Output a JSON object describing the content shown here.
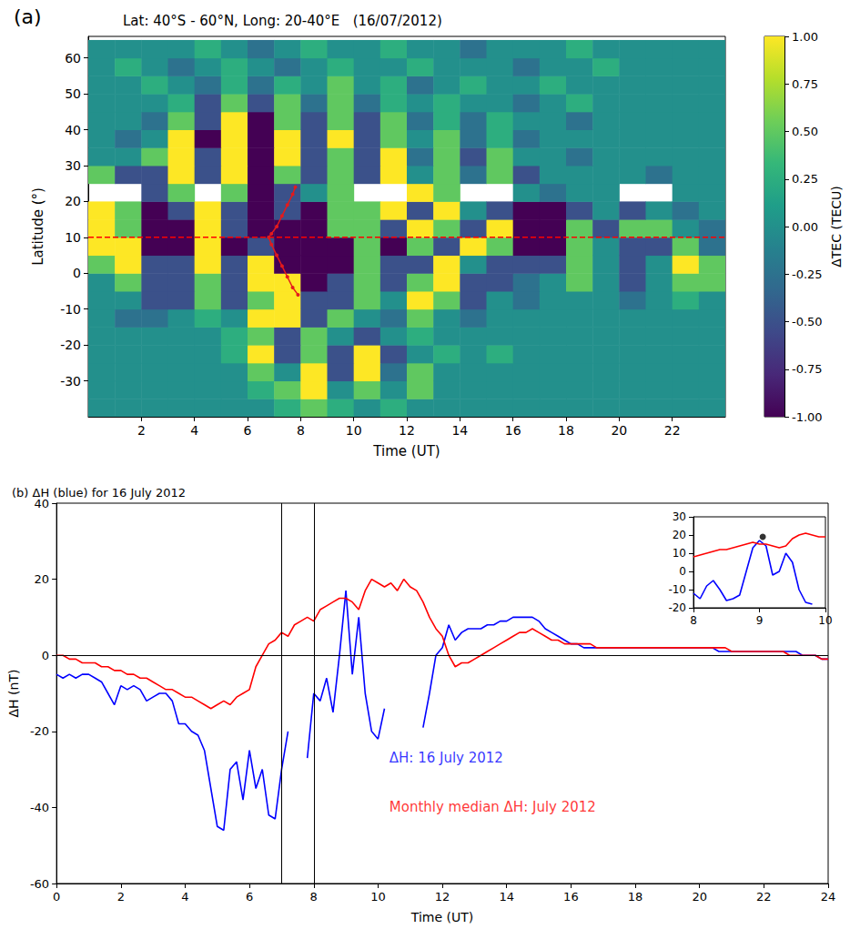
{
  "chart_data": [
    {
      "type": "heatmap",
      "panel": "(a)",
      "title": "Lat: 40°S - 60°N, Long: 20-40°E   (16/07/2012)",
      "x_label": "Time (UT)",
      "y_label": "Latitude (°)",
      "xlim": [
        0,
        24
      ],
      "xticks": [
        2,
        4,
        6,
        8,
        10,
        12,
        14,
        16,
        18,
        20,
        22
      ],
      "ylim": [
        -40,
        66
      ],
      "yticks": [
        -30,
        -20,
        -10,
        0,
        10,
        20,
        30,
        40,
        50,
        60
      ],
      "x": [
        0.5,
        1.5,
        2.5,
        3.5,
        4.5,
        5.5,
        6.5,
        7.5,
        8.5,
        9.5,
        10.5,
        11.5,
        12.5,
        13.5,
        14.5,
        15.5,
        16.5,
        17.5,
        18.5,
        19.5,
        20.5,
        21.5,
        22.5,
        23.5
      ],
      "y": [
        -37.5,
        -32.5,
        -27.5,
        -22.5,
        -17.5,
        -12.5,
        -7.5,
        -2.5,
        2.5,
        7.5,
        12.5,
        17.5,
        22.5,
        27.5,
        32.5,
        37.5,
        42.5,
        47.5,
        52.5,
        57.5,
        62.5
      ],
      "cells": [
        [
          0,
          0,
          0,
          0,
          0,
          0,
          0,
          0.25,
          0.5,
          0.25,
          0,
          0.25,
          0,
          0,
          0,
          0,
          0,
          0,
          0,
          0,
          0,
          0,
          0,
          0
        ],
        [
          0,
          0,
          0,
          0,
          0,
          0,
          0.25,
          0.5,
          1,
          0,
          0.5,
          0,
          0.5,
          0,
          0,
          0,
          0,
          0,
          0,
          0,
          0,
          0,
          0,
          0
        ],
        [
          0,
          0,
          0,
          0,
          0,
          0,
          0.5,
          0,
          1,
          -0.5,
          1,
          -0.25,
          0.5,
          0,
          0,
          0,
          0,
          0,
          0,
          0,
          0,
          0,
          0,
          0
        ],
        [
          0,
          0,
          0,
          0,
          0,
          0.25,
          1,
          -0.5,
          0.5,
          -0.5,
          1,
          -0.5,
          0,
          0.25,
          0,
          0.25,
          0,
          0,
          0,
          0,
          0,
          0,
          0,
          0
        ],
        [
          0,
          0,
          0,
          0,
          0,
          0.25,
          0.5,
          -0.5,
          0.5,
          0,
          -0.5,
          0,
          0.25,
          0,
          0,
          0,
          0,
          0,
          0,
          0,
          0,
          0,
          0,
          0
        ],
        [
          0,
          -0.25,
          -0.25,
          0,
          0.25,
          0,
          1,
          1,
          -0.5,
          0.5,
          0,
          -0.25,
          0.5,
          0,
          -0.25,
          0,
          0,
          0,
          0,
          0,
          0,
          0,
          0,
          0
        ],
        [
          0,
          0,
          -0.5,
          -0.5,
          0.5,
          -0.5,
          0.5,
          1,
          -0.5,
          -0.5,
          0.5,
          0,
          1,
          0.5,
          -0.5,
          0,
          -0.25,
          0,
          0,
          0,
          -0.25,
          0,
          0.25,
          0
        ],
        [
          0,
          0.5,
          -0.5,
          -0.5,
          0.5,
          -0.5,
          1,
          1,
          -1,
          -0.5,
          0.5,
          -0.5,
          0.5,
          1,
          -0.5,
          -0.5,
          -0.25,
          0,
          0.5,
          0,
          -0.5,
          0,
          0.5,
          0.5
        ],
        [
          0.5,
          1,
          -0.5,
          -0.5,
          1,
          -0.5,
          1,
          -1,
          -1,
          -1,
          0.5,
          -0.5,
          -0.5,
          1,
          0,
          -0.5,
          -0.5,
          -0.5,
          0.5,
          0,
          -0.5,
          0,
          1,
          0.5
        ],
        [
          1,
          1,
          -1,
          -1,
          1,
          -1,
          -0.5,
          -1,
          -1,
          -1,
          0.5,
          -1,
          0.5,
          -0.5,
          1,
          0.5,
          -1,
          -1,
          0.5,
          0,
          -0.5,
          -0.5,
          0.5,
          -0.25
        ],
        [
          1,
          0.5,
          -1,
          -1,
          1,
          -0.5,
          -1,
          -1,
          -1,
          0.5,
          0.5,
          -0.5,
          1,
          0.5,
          -0.5,
          1,
          -1,
          -1,
          0.5,
          -0.5,
          0.5,
          0.5,
          0,
          -0.25
        ],
        [
          1,
          0.5,
          -1,
          -0.5,
          1,
          -0.5,
          -1,
          -0.5,
          -1,
          0.5,
          0.5,
          1,
          -0.5,
          1,
          0,
          -0.5,
          -1,
          -1,
          -0.5,
          0,
          -0.5,
          0,
          -0.25,
          0
        ],
        [
          null,
          null,
          -0.5,
          0.5,
          null,
          0.5,
          -1,
          -0.5,
          0,
          0.5,
          null,
          null,
          1,
          0.5,
          null,
          null,
          0,
          -0.25,
          0,
          0,
          null,
          null,
          0,
          0
        ],
        [
          0.5,
          -0.5,
          -0.5,
          1,
          -0.5,
          1,
          -1,
          0.5,
          -0.5,
          0.5,
          -0.5,
          1,
          0,
          0.5,
          -0.25,
          0.5,
          -0.5,
          0,
          0,
          0,
          0,
          -0.25,
          0,
          0
        ],
        [
          0,
          0,
          0.5,
          1,
          -0.5,
          1,
          -1,
          1,
          -0.5,
          0.5,
          -0.5,
          1,
          -0.25,
          0.5,
          -0.5,
          0.5,
          0,
          0,
          -0.25,
          0,
          0,
          0,
          0,
          0
        ],
        [
          0,
          -0.25,
          0,
          1,
          -1,
          1,
          -1,
          1,
          -0.5,
          1,
          -0.5,
          0.5,
          0,
          0.5,
          -0.25,
          0.25,
          -0.25,
          0,
          0,
          0,
          0,
          0,
          0,
          0
        ],
        [
          0,
          0,
          -0.25,
          0.5,
          -0.5,
          1,
          -1,
          0.5,
          -0.5,
          0.5,
          -0.5,
          0.5,
          -0.25,
          0.25,
          -0.25,
          0.25,
          0,
          0,
          -0.25,
          0,
          0,
          0,
          0,
          0
        ],
        [
          0,
          0,
          0,
          0.25,
          -0.5,
          0.5,
          -0.5,
          0.5,
          -0.25,
          0.5,
          -0.25,
          0.25,
          0,
          0.25,
          0,
          0,
          -0.25,
          0,
          0.25,
          0,
          0,
          0,
          0,
          0
        ],
        [
          0,
          0,
          0.25,
          0,
          -0.25,
          0.25,
          -0.25,
          0.25,
          0,
          0.5,
          0,
          0.25,
          -0.25,
          0,
          0.25,
          0,
          0,
          0.25,
          0,
          0,
          0,
          0,
          0,
          0
        ],
        [
          0,
          0.25,
          0,
          -0.25,
          0,
          0.25,
          0,
          -0.25,
          0,
          0.25,
          0,
          0,
          0.25,
          0,
          0,
          0,
          -0.25,
          0,
          0,
          0.25,
          0,
          0,
          0,
          0
        ],
        [
          0,
          0,
          0,
          0,
          0.25,
          0,
          -0.25,
          0,
          0.25,
          0,
          0,
          0.25,
          0,
          0,
          -0.25,
          0,
          0,
          0,
          0.25,
          0,
          0,
          0,
          0,
          0
        ]
      ],
      "colorbar": {
        "label": "ΔTEC (TECU)",
        "range": [
          -1,
          1
        ],
        "ticks": [
          {
            "value": -1,
            "label": "-1.00"
          },
          {
            "value": -0.75,
            "label": "-0.75"
          },
          {
            "value": -0.5,
            "label": "-0.50"
          },
          {
            "value": -0.25,
            "label": "-0.25"
          },
          {
            "value": 0,
            "label": "0.00"
          },
          {
            "value": 0.25,
            "label": "0.25"
          },
          {
            "value": 0.5,
            "label": "0.50"
          },
          {
            "value": 0.75,
            "label": "0.75"
          },
          {
            "value": 1,
            "label": "1.00"
          }
        ]
      },
      "series": [
        {
          "type": "line",
          "color": "#ff0000",
          "line_style": "dashed",
          "x": [
            0,
            24
          ],
          "y": [
            10,
            10
          ]
        },
        {
          "type": "line",
          "color": "#e41a1c",
          "line_style": "solid",
          "marker": "circle",
          "x": [
            7.8,
            7.7,
            7.5,
            7.3,
            7.1,
            6.9,
            6.8,
            6.9,
            7.1,
            7.3,
            7.5,
            7.7,
            7.9
          ],
          "y": [
            24,
            22,
            19,
            16,
            13,
            11,
            10,
            8,
            5,
            2,
            -1,
            -4,
            -6
          ]
        }
      ]
    },
    {
      "type": "line",
      "title": "(b) ΔH (blue) for 16 July 2012",
      "x_label": "Time (UT)",
      "y_label": "ΔH (nT)",
      "xlim": [
        0,
        24
      ],
      "xticks": [
        0,
        2,
        4,
        6,
        8,
        10,
        12,
        14,
        16,
        18,
        20,
        22,
        24
      ],
      "ylim": [
        -60,
        40
      ],
      "yticks": [
        -60,
        -40,
        -20,
        0,
        20,
        40
      ],
      "x": [
        0,
        0.2,
        0.4,
        0.6,
        0.8,
        1,
        1.2,
        1.4,
        1.6,
        1.8,
        2,
        2.2,
        2.4,
        2.6,
        2.8,
        3,
        3.2,
        3.4,
        3.6,
        3.8,
        4,
        4.2,
        4.4,
        4.6,
        4.8,
        5,
        5.2,
        5.4,
        5.6,
        5.8,
        6,
        6.2,
        6.4,
        6.6,
        6.8,
        7,
        7.2,
        7.4,
        7.6,
        7.8,
        8,
        8.2,
        8.4,
        8.6,
        8.8,
        9,
        9.2,
        9.4,
        9.6,
        9.8,
        10,
        10.2,
        10.4,
        10.6,
        10.8,
        11,
        11.2,
        11.4,
        11.6,
        11.8,
        12,
        12.2,
        12.4,
        12.6,
        12.8,
        13,
        13.2,
        13.4,
        13.6,
        13.8,
        14,
        14.2,
        14.4,
        14.6,
        14.8,
        15,
        15.2,
        15.4,
        15.6,
        15.8,
        16,
        16.2,
        16.4,
        16.6,
        16.8,
        17,
        17.2,
        17.4,
        17.6,
        17.8,
        18,
        18.2,
        18.4,
        18.6,
        18.8,
        19,
        19.2,
        19.4,
        19.6,
        19.8,
        20,
        20.2,
        20.4,
        20.6,
        20.8,
        21,
        21.2,
        21.4,
        21.6,
        21.8,
        22,
        22.2,
        22.4,
        22.6,
        22.8,
        23,
        23.2,
        23.4,
        23.6,
        23.8,
        24
      ],
      "series": [
        {
          "color": "#0000ff",
          "values": [
            -5,
            -6,
            -5,
            -6,
            -5,
            -5,
            -6,
            -7,
            -10,
            -13,
            -8,
            -9,
            -8,
            -9,
            -12,
            -11,
            -10,
            -10,
            -12,
            -18,
            -18,
            -20,
            -21,
            -25,
            -35,
            -45,
            -46,
            -30,
            -28,
            -38,
            -25,
            -35,
            -30,
            -42,
            -43,
            -30,
            -20,
            null,
            null,
            -27,
            -10,
            -12,
            -6,
            -15,
            0,
            17,
            -5,
            10,
            -10,
            -20,
            -22,
            -14,
            null,
            null,
            null,
            null,
            null,
            -19,
            -10,
            0,
            2,
            8,
            4,
            6,
            7,
            7,
            7,
            8,
            8,
            9,
            9,
            10,
            10,
            10,
            10,
            9,
            7,
            6,
            5,
            4,
            3,
            3,
            2,
            2,
            2,
            2,
            2,
            2,
            2,
            2,
            2,
            2,
            2,
            2,
            2,
            2,
            2,
            2,
            2,
            2,
            2,
            2,
            2,
            1,
            1,
            1,
            1,
            1,
            1,
            1,
            1,
            1,
            1,
            1,
            1,
            1,
            0,
            0,
            0,
            -1,
            -1
          ]
        },
        {
          "color": "#ff0000",
          "values": [
            0,
            0,
            -1,
            -1,
            -2,
            -2,
            -2,
            -3,
            -3,
            -4,
            -4,
            -5,
            -5,
            -6,
            -6,
            -7,
            -8,
            -9,
            -9,
            -10,
            -11,
            -11,
            -12,
            -13,
            -14,
            -13,
            -12,
            -13,
            -11,
            -10,
            -9,
            -3,
            0,
            3,
            4,
            6,
            5,
            8,
            9,
            10,
            9,
            12,
            13,
            14,
            15,
            15,
            14,
            12,
            17,
            20,
            19,
            18,
            19,
            17,
            20,
            18,
            17,
            14,
            10,
            7,
            5,
            0,
            -3,
            -2,
            -2,
            -1,
            0,
            1,
            2,
            3,
            4,
            5,
            6,
            6,
            7,
            6,
            5,
            4,
            4,
            3,
            3,
            3,
            3,
            3,
            2,
            2,
            2,
            2,
            2,
            2,
            2,
            2,
            2,
            2,
            2,
            2,
            2,
            2,
            2,
            2,
            2,
            2,
            2,
            2,
            2,
            1,
            1,
            1,
            1,
            1,
            1,
            1,
            1,
            1,
            0,
            0,
            0,
            0,
            0,
            -1,
            -1
          ]
        }
      ],
      "vlines": [
        7,
        8
      ],
      "hlines": [
        0
      ],
      "annotations": [
        {
          "text": "ΔH: 16 July 2012",
          "x": 10.35,
          "y": -27,
          "color": "#0000ff"
        },
        {
          "text": "Monthly median ΔH: July 2012",
          "x": 10.35,
          "y": -40,
          "color": "#ff0000"
        }
      ]
    },
    {
      "type": "line",
      "xlim": [
        8,
        10
      ],
      "xticks": [
        8,
        9,
        10
      ],
      "ylim": [
        -20,
        30
      ],
      "yticks": [
        -20,
        -10,
        0,
        10,
        20,
        30
      ],
      "x": [
        8,
        8.1,
        8.2,
        8.3,
        8.4,
        8.5,
        8.6,
        8.7,
        8.8,
        8.9,
        9,
        9.1,
        9.2,
        9.3,
        9.4,
        9.5,
        9.6,
        9.7,
        9.8,
        9.9,
        10
      ],
      "series": [
        {
          "color": "#0000ff",
          "values": [
            -12,
            -15,
            -8,
            -5,
            -10,
            -16,
            -15,
            -13,
            0,
            13,
            17,
            14,
            -2,
            0,
            10,
            5,
            -10,
            -17,
            -18,
            null,
            null
          ]
        },
        {
          "color": "#ff0000",
          "values": [
            8,
            9,
            10,
            11,
            12,
            12,
            13,
            14,
            15,
            16,
            15,
            15,
            14,
            13,
            14,
            18,
            20,
            21,
            20,
            19,
            19
          ]
        },
        {
          "type": "scatter",
          "color": "#000000",
          "marker": "circle",
          "x": [
            9.05
          ],
          "y": [
            19
          ]
        }
      ]
    }
  ]
}
